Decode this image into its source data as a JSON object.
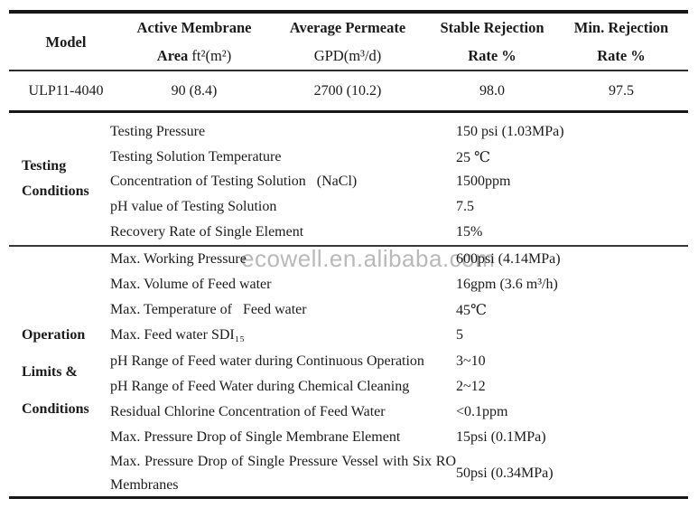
{
  "watermark": "ecowell.en.alibaba.com",
  "spec": {
    "columns": [
      {
        "line1": "Model"
      },
      {
        "line1": "Active Membrane",
        "line2_bold": "Area",
        "line2_regular": " ft²(m²)"
      },
      {
        "line1": "Average Permeate",
        "line2_regular": "GPD(m³/d)"
      },
      {
        "line1": "Stable Rejection",
        "line2_bold": "Rate %"
      },
      {
        "line1": "Min. Rejection",
        "line2_bold": "Rate %"
      }
    ],
    "row": {
      "model": "ULP11-4040",
      "active_membrane_area": "90 (8.4)",
      "average_permeate": "2700 (10.2)",
      "stable_rejection_rate": "98.0",
      "min_rejection_rate": "97.5"
    }
  },
  "sections": [
    {
      "label_lines": [
        "Testing",
        "Conditions"
      ],
      "rows": [
        {
          "param": "Testing Pressure",
          "value": "150 psi (1.03MPa)"
        },
        {
          "param": "Testing Solution Temperature",
          "value": "25 ℃"
        },
        {
          "param": "Concentration of Testing Solution   (NaCl)",
          "value": "1500ppm"
        },
        {
          "param": "pH value of Testing Solution",
          "value": "7.5"
        },
        {
          "param": "Recovery Rate of Single Element",
          "value": "15%"
        }
      ]
    },
    {
      "label_lines": [
        "Operation",
        "Limits &",
        "Conditions"
      ],
      "rows": [
        {
          "param": "Max. Working Pressure",
          "value": "600psi (4.14MPa)"
        },
        {
          "param": "Max. Volume of Feed water",
          "value": "16gpm (3.6 m³/h)"
        },
        {
          "param": "Max. Temperature of   Feed water",
          "value": "45℃"
        },
        {
          "param": "Max. Feed water SDI₁₅",
          "value": "5"
        },
        {
          "param": "pH Range of Feed water during Continuous Operation",
          "value": "3~10"
        },
        {
          "param": "pH Range of Feed Water during Chemical Cleaning",
          "value": "2~12"
        },
        {
          "param": "Residual Chlorine Concentration of Feed Water",
          "value": "<0.1ppm"
        },
        {
          "param": "Max. Pressure Drop of Single Membrane Element",
          "value": "15psi (0.1MPa)"
        },
        {
          "param": "Max. Pressure Drop of Single Pressure Vessel with Six RO Membranes",
          "value": "50psi (0.34MPa)"
        }
      ]
    }
  ]
}
